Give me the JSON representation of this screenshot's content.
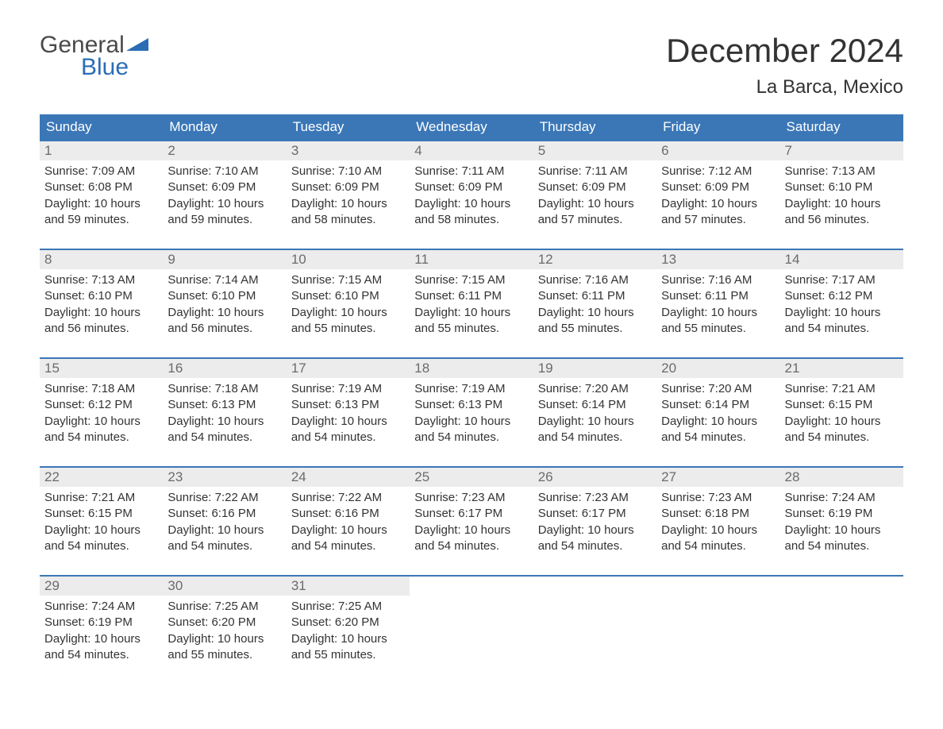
{
  "logo": {
    "text_top": "General",
    "text_bottom": "Blue"
  },
  "title": "December 2024",
  "location": "La Barca, Mexico",
  "colors": {
    "header_bg": "#3b77b7",
    "header_text": "#ffffff",
    "daynum_bg": "#ececec",
    "daynum_text": "#6b6b6b",
    "body_text": "#333333",
    "accent": "#2a6db5",
    "page_bg": "#ffffff"
  },
  "day_headers": [
    "Sunday",
    "Monday",
    "Tuesday",
    "Wednesday",
    "Thursday",
    "Friday",
    "Saturday"
  ],
  "weeks": [
    [
      {
        "n": "1",
        "sunrise": "7:09 AM",
        "sunset": "6:08 PM",
        "daylight": "10 hours and 59 minutes."
      },
      {
        "n": "2",
        "sunrise": "7:10 AM",
        "sunset": "6:09 PM",
        "daylight": "10 hours and 59 minutes."
      },
      {
        "n": "3",
        "sunrise": "7:10 AM",
        "sunset": "6:09 PM",
        "daylight": "10 hours and 58 minutes."
      },
      {
        "n": "4",
        "sunrise": "7:11 AM",
        "sunset": "6:09 PM",
        "daylight": "10 hours and 58 minutes."
      },
      {
        "n": "5",
        "sunrise": "7:11 AM",
        "sunset": "6:09 PM",
        "daylight": "10 hours and 57 minutes."
      },
      {
        "n": "6",
        "sunrise": "7:12 AM",
        "sunset": "6:09 PM",
        "daylight": "10 hours and 57 minutes."
      },
      {
        "n": "7",
        "sunrise": "7:13 AM",
        "sunset": "6:10 PM",
        "daylight": "10 hours and 56 minutes."
      }
    ],
    [
      {
        "n": "8",
        "sunrise": "7:13 AM",
        "sunset": "6:10 PM",
        "daylight": "10 hours and 56 minutes."
      },
      {
        "n": "9",
        "sunrise": "7:14 AM",
        "sunset": "6:10 PM",
        "daylight": "10 hours and 56 minutes."
      },
      {
        "n": "10",
        "sunrise": "7:15 AM",
        "sunset": "6:10 PM",
        "daylight": "10 hours and 55 minutes."
      },
      {
        "n": "11",
        "sunrise": "7:15 AM",
        "sunset": "6:11 PM",
        "daylight": "10 hours and 55 minutes."
      },
      {
        "n": "12",
        "sunrise": "7:16 AM",
        "sunset": "6:11 PM",
        "daylight": "10 hours and 55 minutes."
      },
      {
        "n": "13",
        "sunrise": "7:16 AM",
        "sunset": "6:11 PM",
        "daylight": "10 hours and 55 minutes."
      },
      {
        "n": "14",
        "sunrise": "7:17 AM",
        "sunset": "6:12 PM",
        "daylight": "10 hours and 54 minutes."
      }
    ],
    [
      {
        "n": "15",
        "sunrise": "7:18 AM",
        "sunset": "6:12 PM",
        "daylight": "10 hours and 54 minutes."
      },
      {
        "n": "16",
        "sunrise": "7:18 AM",
        "sunset": "6:13 PM",
        "daylight": "10 hours and 54 minutes."
      },
      {
        "n": "17",
        "sunrise": "7:19 AM",
        "sunset": "6:13 PM",
        "daylight": "10 hours and 54 minutes."
      },
      {
        "n": "18",
        "sunrise": "7:19 AM",
        "sunset": "6:13 PM",
        "daylight": "10 hours and 54 minutes."
      },
      {
        "n": "19",
        "sunrise": "7:20 AM",
        "sunset": "6:14 PM",
        "daylight": "10 hours and 54 minutes."
      },
      {
        "n": "20",
        "sunrise": "7:20 AM",
        "sunset": "6:14 PM",
        "daylight": "10 hours and 54 minutes."
      },
      {
        "n": "21",
        "sunrise": "7:21 AM",
        "sunset": "6:15 PM",
        "daylight": "10 hours and 54 minutes."
      }
    ],
    [
      {
        "n": "22",
        "sunrise": "7:21 AM",
        "sunset": "6:15 PM",
        "daylight": "10 hours and 54 minutes."
      },
      {
        "n": "23",
        "sunrise": "7:22 AM",
        "sunset": "6:16 PM",
        "daylight": "10 hours and 54 minutes."
      },
      {
        "n": "24",
        "sunrise": "7:22 AM",
        "sunset": "6:16 PM",
        "daylight": "10 hours and 54 minutes."
      },
      {
        "n": "25",
        "sunrise": "7:23 AM",
        "sunset": "6:17 PM",
        "daylight": "10 hours and 54 minutes."
      },
      {
        "n": "26",
        "sunrise": "7:23 AM",
        "sunset": "6:17 PM",
        "daylight": "10 hours and 54 minutes."
      },
      {
        "n": "27",
        "sunrise": "7:23 AM",
        "sunset": "6:18 PM",
        "daylight": "10 hours and 54 minutes."
      },
      {
        "n": "28",
        "sunrise": "7:24 AM",
        "sunset": "6:19 PM",
        "daylight": "10 hours and 54 minutes."
      }
    ],
    [
      {
        "n": "29",
        "sunrise": "7:24 AM",
        "sunset": "6:19 PM",
        "daylight": "10 hours and 54 minutes."
      },
      {
        "n": "30",
        "sunrise": "7:25 AM",
        "sunset": "6:20 PM",
        "daylight": "10 hours and 55 minutes."
      },
      {
        "n": "31",
        "sunrise": "7:25 AM",
        "sunset": "6:20 PM",
        "daylight": "10 hours and 55 minutes."
      },
      null,
      null,
      null,
      null
    ]
  ],
  "labels": {
    "sunrise": "Sunrise: ",
    "sunset": "Sunset: ",
    "daylight": "Daylight: "
  }
}
